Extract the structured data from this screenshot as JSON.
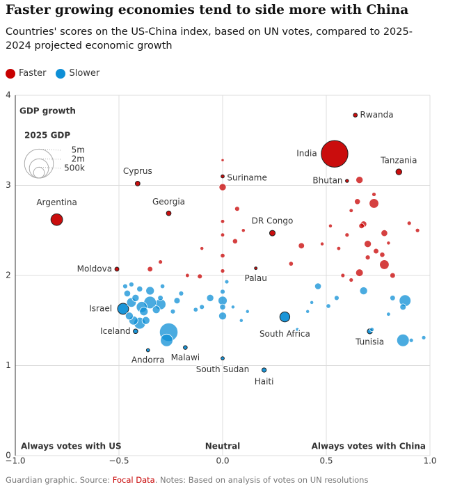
{
  "chart_data": {
    "type": "scatter",
    "title": "Faster growing economies tend to side more with China",
    "subtitle": "Countries' scores on the US-China index, based on UN votes, compared to 2025-2024 projected economic growth",
    "y_label": "GDP growth",
    "legend_position": "top-left",
    "grid": true,
    "xlim": [
      -1,
      1
    ],
    "xticks": [
      {
        "value": -1,
        "label": "−1.0"
      },
      {
        "value": -0.5,
        "label": "−0.5"
      },
      {
        "value": 0,
        "label": "0.0"
      },
      {
        "value": 0.5,
        "label": "0.5"
      },
      {
        "value": 1,
        "label": "1.0"
      }
    ],
    "ylim": [
      0,
      4
    ],
    "yticks": [
      0,
      1,
      2,
      3,
      4
    ],
    "annotations": [
      "Always votes with US",
      "Neutral",
      "Always votes with China"
    ],
    "size_legend": {
      "title": "2025 GDP",
      "values": [
        {
          "value": 5000000,
          "label": "5m"
        },
        {
          "value": 2000000,
          "label": "2m"
        },
        {
          "value": 500000,
          "label": "500k"
        }
      ]
    },
    "series": [
      {
        "name": "Faster",
        "color": "#c70000",
        "labels": [
          "Rwanda",
          "India",
          "Tanzania",
          "Bhutan",
          "Cyprus",
          "Suriname",
          "Argentina",
          "Georgia",
          "DR Congo",
          "Moldova",
          "Palau",
          null,
          null,
          null,
          null,
          null,
          null,
          null,
          null,
          null,
          null,
          null,
          null,
          null,
          null,
          null,
          null,
          null,
          null,
          null,
          null,
          null,
          null,
          null,
          null,
          null,
          null,
          null,
          null,
          null,
          null,
          null,
          null,
          null,
          null,
          null,
          null,
          null,
          null,
          null,
          null
        ],
        "x": [
          0.64,
          0.54,
          0.85,
          0.6,
          -0.41,
          0.0,
          -0.8,
          -0.26,
          0.24,
          -0.51,
          0.16,
          0.0,
          0.0,
          0.66,
          0.73,
          0.65,
          0.68,
          0.67,
          0.7,
          0.78,
          0.78,
          0.82,
          0.9,
          0.94,
          0.38,
          0.33,
          0.66,
          0.7,
          0.74,
          0.77,
          0.6,
          0.56,
          0.62,
          0.58,
          0.48,
          0.07,
          0.06,
          0.0,
          0.0,
          0.0,
          0.0,
          -0.35,
          -0.3,
          -0.11,
          -0.17,
          -0.1,
          0.1,
          0.8,
          0.52,
          0.62,
          0.73
        ],
        "values": [
          3.78,
          3.35,
          3.15,
          3.05,
          3.02,
          3.1,
          2.62,
          2.69,
          2.47,
          2.07,
          2.08,
          2.98,
          3.28,
          3.06,
          2.8,
          2.82,
          2.57,
          2.55,
          2.35,
          2.47,
          2.12,
          2.0,
          2.58,
          2.5,
          2.33,
          2.13,
          2.03,
          2.2,
          2.27,
          2.23,
          2.45,
          2.3,
          1.95,
          2.0,
          2.35,
          2.74,
          2.38,
          2.22,
          2.45,
          2.6,
          2.05,
          2.07,
          2.15,
          1.99,
          2.0,
          2.3,
          2.5,
          2.36,
          2.55,
          2.72,
          2.9
        ],
        "sizes": [
          15000,
          4200000,
          80000,
          3000,
          35000,
          4000,
          600000,
          35000,
          70000,
          18000,
          300,
          150000,
          2000,
          150000,
          350000,
          80000,
          100000,
          60000,
          150000,
          120000,
          350000,
          60000,
          20000,
          20000,
          90000,
          30000,
          180000,
          40000,
          60000,
          50000,
          20000,
          15000,
          20000,
          20000,
          10000,
          40000,
          50000,
          30000,
          15000,
          15000,
          20000,
          60000,
          20000,
          40000,
          15000,
          10000,
          10000,
          10000,
          10000,
          15000,
          20000
        ]
      },
      {
        "name": "Slower",
        "color": "#0e8fd6",
        "labels": [
          "Israel",
          "Iceland",
          "Andorra",
          "Malawi",
          "South Sudan",
          "Haiti",
          "South Africa",
          "Tunisia",
          null,
          null,
          null,
          null,
          null,
          null,
          null,
          null,
          null,
          null,
          null,
          null,
          null,
          null,
          null,
          null,
          null,
          null,
          null,
          null,
          null,
          null,
          null,
          null,
          null,
          null,
          null,
          null,
          null,
          null,
          null,
          null,
          null,
          null,
          null,
          null,
          null,
          null,
          null,
          null,
          null,
          null,
          null,
          null,
          null,
          null,
          null,
          null,
          null,
          null
        ],
        "x": [
          -0.48,
          -0.42,
          -0.36,
          -0.18,
          0.0,
          0.2,
          0.3,
          0.71,
          -0.26,
          -0.27,
          -0.3,
          -0.35,
          -0.39,
          -0.4,
          -0.43,
          -0.45,
          -0.44,
          -0.38,
          -0.35,
          -0.42,
          -0.46,
          -0.47,
          -0.44,
          -0.4,
          -0.37,
          -0.32,
          -0.3,
          -0.29,
          -0.22,
          -0.24,
          -0.2,
          -0.13,
          -0.06,
          -0.1,
          0.0,
          0.0,
          0.0,
          0.0,
          0.02,
          0.05,
          0.09,
          0.12,
          0.46,
          0.51,
          0.55,
          0.68,
          0.88,
          0.87,
          0.87,
          0.91,
          0.97,
          0.82,
          0.72,
          0.8,
          0.43,
          0.41,
          0.36,
          0.27
        ],
        "values": [
          1.63,
          1.38,
          1.17,
          1.2,
          1.08,
          0.95,
          1.54,
          1.38,
          1.37,
          1.28,
          1.68,
          1.7,
          1.65,
          1.47,
          1.5,
          1.55,
          1.7,
          1.6,
          1.83,
          1.75,
          1.8,
          1.88,
          1.9,
          1.85,
          1.5,
          1.62,
          1.75,
          1.88,
          1.72,
          1.6,
          1.8,
          1.62,
          1.75,
          1.65,
          1.72,
          1.55,
          1.65,
          1.82,
          1.93,
          1.65,
          1.5,
          1.6,
          1.88,
          1.66,
          1.75,
          1.83,
          1.72,
          1.65,
          1.28,
          1.28,
          1.31,
          1.75,
          1.4,
          1.57,
          1.7,
          1.6,
          1.4,
          1.36
        ],
        "sizes": [
          520000,
          30000,
          4000,
          13000,
          5000,
          25000,
          400000,
          50000,
          1800000,
          700000,
          500000,
          700000,
          500000,
          600000,
          300000,
          200000,
          350000,
          250000,
          250000,
          150000,
          120000,
          40000,
          40000,
          80000,
          200000,
          200000,
          60000,
          30000,
          100000,
          40000,
          40000,
          30000,
          150000,
          40000,
          300000,
          200000,
          80000,
          40000,
          20000,
          10000,
          10000,
          10000,
          120000,
          30000,
          40000,
          200000,
          600000,
          100000,
          700000,
          20000,
          20000,
          60000,
          20000,
          15000,
          10000,
          10000,
          10000,
          10000
        ]
      }
    ],
    "source": {
      "prefix": "Guardian graphic. Source: ",
      "link": "Focal Data",
      "suffix": ". Notes: Based on analysis of votes on UN resolutions"
    }
  }
}
